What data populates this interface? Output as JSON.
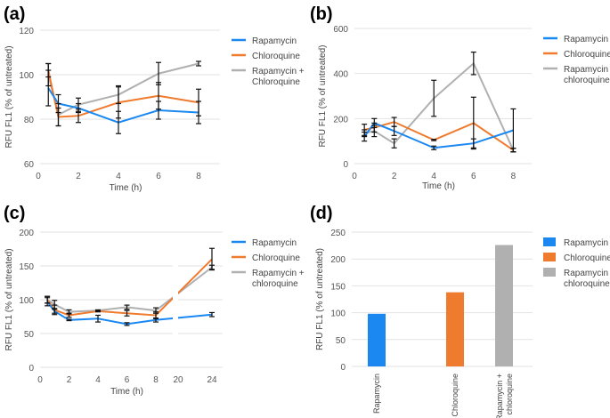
{
  "colors": {
    "Rapamycin": "#1a88f0",
    "Chloroquine": "#ef7b2f",
    "Combination": "#b0b0b0",
    "error_bar": "#111111"
  },
  "chart_data": [
    {
      "panel_label": "(a)",
      "type": "line",
      "xlabel": "Time (h)",
      "ylabel": "RFU FL1 (% of untreated)",
      "ylim": [
        60,
        120
      ],
      "yticks": [
        60,
        80,
        100,
        120
      ],
      "xticks": [
        0,
        2,
        4,
        6,
        8
      ],
      "grid": true,
      "legend": "right",
      "x": [
        0.5,
        1,
        2,
        4,
        6,
        8
      ],
      "series": [
        {
          "name": "Rapamycin",
          "values": [
            94,
            87,
            85,
            78.5,
            84,
            83
          ],
          "errors": [
            8,
            4,
            2,
            5,
            4,
            5
          ]
        },
        {
          "name": "Chloroquine",
          "values": [
            102,
            81,
            81.5,
            87.5,
            90.5,
            87.5
          ],
          "errors": [
            3,
            4,
            3,
            7,
            6,
            6
          ]
        },
        {
          "name": "Rapamycin + Chloroquine",
          "values": [
            100,
            82,
            86.5,
            91,
            100.5,
            105
          ],
          "errors": [
            5,
            5,
            3,
            4,
            5,
            1
          ]
        }
      ]
    },
    {
      "panel_label": "(b)",
      "type": "line",
      "xlabel": "Time (h)",
      "ylabel": "RFU FL1 (% of untreated)",
      "ylim": [
        0,
        600
      ],
      "yticks": [
        0,
        200,
        400,
        600
      ],
      "xticks": [
        0,
        2,
        4,
        6,
        8
      ],
      "grid": true,
      "legend": "right",
      "x": [
        0.5,
        1,
        2,
        4,
        6,
        8
      ],
      "series": [
        {
          "name": "Rapamycin",
          "values": [
            120,
            180,
            145,
            70,
            90,
            148
          ],
          "errors": [
            20,
            20,
            20,
            8,
            20,
            95
          ]
        },
        {
          "name": "Chloroquine",
          "values": [
            150,
            160,
            185,
            105,
            180,
            60
          ],
          "errors": [
            25,
            20,
            20,
            3,
            115,
            8
          ]
        },
        {
          "name": "Rapamycin + chloroquine",
          "values": [
            135,
            145,
            90,
            290,
            445,
            60
          ],
          "errors": [
            15,
            25,
            20,
            80,
            50,
            8
          ]
        }
      ]
    },
    {
      "panel_label": "(c)",
      "type": "line",
      "xlabel": "Time (h)",
      "ylabel": "RFU FL1 (% of untreated)",
      "ylim": [
        0,
        200
      ],
      "yticks": [
        0,
        50,
        100,
        150,
        200
      ],
      "xticks": [
        0,
        2,
        4,
        6,
        8,
        20,
        24
      ],
      "axis_break": [
        8,
        20
      ],
      "grid": true,
      "legend": "right",
      "x": [
        0.5,
        1,
        2,
        4,
        6,
        8,
        24
      ],
      "series": [
        {
          "name": "Rapamycin",
          "values": [
            97,
            83,
            70,
            72,
            64,
            70,
            78
          ],
          "errors": [
            6,
            3,
            1,
            5,
            2,
            3,
            3
          ]
        },
        {
          "name": "Chloroquine",
          "values": [
            100,
            85,
            77,
            83,
            80,
            77,
            160
          ],
          "errors": [
            5,
            7,
            3,
            1,
            4,
            5,
            16
          ]
        },
        {
          "name": "Rapamycin + chloroquine",
          "values": [
            100,
            93,
            82,
            84,
            89,
            84,
            148
          ],
          "errors": [
            5,
            6,
            3,
            1,
            3,
            4,
            3
          ]
        }
      ]
    },
    {
      "panel_label": "(d)",
      "type": "bar",
      "xlabel": "",
      "ylabel": "RFU FL1 (% of untreated)",
      "ylim": [
        0,
        250
      ],
      "yticks": [
        0,
        50,
        100,
        150,
        200,
        250
      ],
      "grid": true,
      "legend": "right",
      "categories": [
        "Rapamycin",
        "Chloroquine",
        "Rapamycin + chloroquine"
      ],
      "values": [
        98,
        138,
        226
      ],
      "series_names": [
        "Rapamycin",
        "Chloroquine",
        "Rapamycin + chloroquine"
      ]
    }
  ]
}
